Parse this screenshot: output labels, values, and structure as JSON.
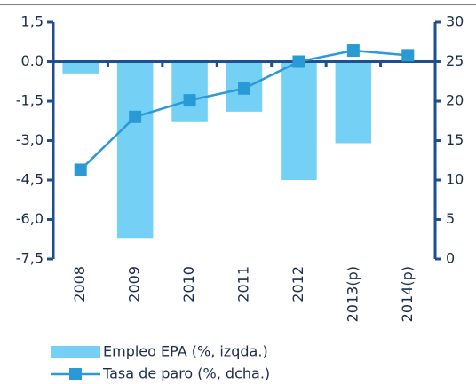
{
  "chart_data": {
    "type": "bar",
    "categories": [
      "2008",
      "2009",
      "2010",
      "2011",
      "2012",
      "2013(p)",
      "2014(p)"
    ],
    "series": [
      {
        "name": "Empleo EPA (%, izqda.)",
        "type": "bar",
        "color": "#74d0f4",
        "values": [
          -0.45,
          -6.7,
          -2.3,
          -1.9,
          -4.5,
          -3.1,
          null
        ]
      },
      {
        "name": "Tasa de paro (%, dcha.)",
        "type": "line",
        "axis": "y2",
        "color": "#2a9ad6",
        "values": [
          11.3,
          18.0,
          20.1,
          21.6,
          25.0,
          26.4,
          25.8
        ]
      }
    ],
    "ylim": [
      -7.5,
      1.5
    ],
    "yticks": [
      {
        "value": -7.5,
        "label": "-7,5"
      },
      {
        "value": -6,
        "label": "-6,0"
      },
      {
        "value": -4.5,
        "label": "-4,5"
      },
      {
        "value": -3,
        "label": "-3,0"
      },
      {
        "value": -1.5,
        "label": "-1,5"
      },
      {
        "value": 0,
        "label": "0.0"
      },
      {
        "value": 1.5,
        "label": "1,5"
      }
    ],
    "y2lim": [
      0,
      30
    ],
    "y2ticks": [
      0,
      5,
      10,
      15,
      20,
      25,
      30
    ],
    "axis_color": "#1f4f8f"
  }
}
